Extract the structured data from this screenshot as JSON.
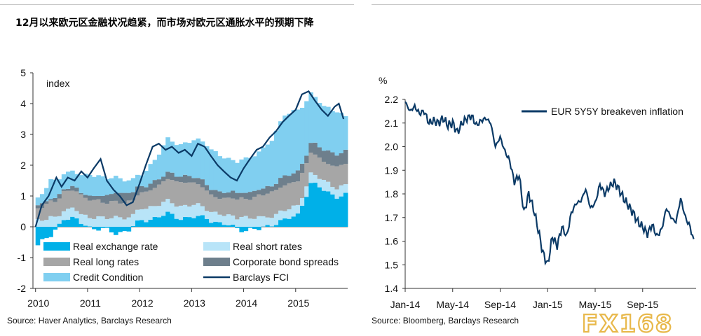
{
  "title": "12月以来欧元区金融状况趋紧，而市场对欧元区通胀水平的预期下降",
  "left_source": "Source: Haver Analytics, Barclays Research",
  "right_source": "Source: Bloomberg, Barclays Research",
  "watermark": {
    "brand": "FX168",
    "colors": [
      "#e8b84a",
      "#c0392b",
      "#e06a3c"
    ]
  },
  "chart_data": [
    {
      "type": "bar",
      "stacked": true,
      "unit_label": "index",
      "ylim": [
        -2,
        5
      ],
      "yticks": [
        "5",
        "4",
        "3",
        "2",
        "1",
        "0",
        "-1",
        "-2"
      ],
      "xticks": [
        {
          "label": "2010",
          "t": 2010.0
        },
        {
          "label": "2011",
          "t": 2011.0
        },
        {
          "label": "2012",
          "t": 2012.0
        },
        {
          "label": "2013",
          "t": 2013.0
        },
        {
          "label": "2014",
          "t": 2014.0
        },
        {
          "label": "2015",
          "t": 2015.0
        }
      ],
      "xrange": [
        2009.95,
        2016.0
      ],
      "series_colors": {
        "real_exchange_rate": "#00b0e8",
        "real_short_rates": "#b8e4f8",
        "real_long_rates": "#a6a6a6",
        "corporate_bond_spreads": "#6e7f8c",
        "credit_condition": "#80cff0",
        "barclays_fci": "#0b3a66"
      },
      "legend": [
        {
          "key": "real_exchange_rate",
          "name": "Real exchange rate",
          "marker": "box"
        },
        {
          "key": "real_short_rates",
          "name": "Real short rates",
          "marker": "box"
        },
        {
          "key": "real_long_rates",
          "name": "Real long rates",
          "marker": "box"
        },
        {
          "key": "corporate_bond_spreads",
          "name": "Corporate bond spreads",
          "marker": "box"
        },
        {
          "key": "credit_condition",
          "name": "Credit Condition",
          "marker": "box"
        },
        {
          "key": "barclays_fci",
          "name": "Barclays FCI",
          "marker": "line"
        }
      ],
      "series_keyframes": {
        "t": [
          2010.0,
          2010.25,
          2010.5,
          2010.75,
          2011.0,
          2011.25,
          2011.5,
          2011.75,
          2012.0,
          2012.25,
          2012.5,
          2012.75,
          2013.0,
          2013.25,
          2013.5,
          2013.75,
          2014.0,
          2014.25,
          2014.5,
          2014.75,
          2015.0,
          2015.25,
          2015.5,
          2015.75,
          2015.92
        ],
        "real_exchange_rate": [
          -0.6,
          -0.3,
          0.3,
          0.2,
          0.0,
          -0.1,
          -0.2,
          -0.1,
          0.2,
          0.3,
          0.4,
          0.3,
          0.3,
          0.3,
          0.1,
          0.0,
          -0.1,
          -0.1,
          0.1,
          0.2,
          0.4,
          1.4,
          1.2,
          1.0,
          1.0
        ],
        "real_short_rates": [
          0.2,
          0.3,
          0.3,
          0.3,
          0.3,
          0.3,
          0.3,
          0.3,
          0.4,
          0.4,
          0.4,
          0.4,
          0.4,
          0.3,
          0.3,
          0.3,
          0.3,
          0.3,
          0.3,
          0.3,
          0.3,
          0.3,
          0.3,
          0.3,
          0.3
        ],
        "real_long_rates": [
          0.4,
          0.5,
          0.6,
          0.6,
          0.6,
          0.5,
          0.5,
          0.5,
          0.5,
          0.6,
          0.7,
          0.8,
          0.7,
          0.6,
          0.5,
          0.6,
          0.6,
          0.7,
          0.8,
          0.8,
          0.8,
          0.7,
          0.6,
          0.7,
          0.7
        ],
        "corporate_bond_spreads": [
          0.1,
          0.1,
          0.1,
          0.1,
          0.1,
          0.2,
          0.3,
          0.3,
          0.2,
          0.2,
          0.2,
          0.2,
          0.2,
          0.2,
          0.2,
          0.2,
          0.2,
          0.2,
          0.2,
          0.3,
          0.3,
          0.3,
          0.4,
          0.4,
          0.4
        ],
        "credit_condition": [
          0.2,
          0.6,
          0.5,
          0.5,
          0.7,
          0.6,
          0.5,
          0.4,
          0.4,
          0.7,
          1.1,
          1.0,
          1.2,
          1.3,
          1.2,
          1.0,
          1.1,
          1.2,
          1.5,
          2.0,
          2.0,
          1.6,
          1.4,
          1.4,
          1.1
        ]
      },
      "fci": {
        "t": [
          2010.0,
          2010.12,
          2010.25,
          2010.4,
          2010.5,
          2010.62,
          2010.75,
          2010.88,
          2011.0,
          2011.12,
          2011.25,
          2011.37,
          2011.5,
          2011.62,
          2011.75,
          2011.87,
          2012.0,
          2012.12,
          2012.25,
          2012.37,
          2012.5,
          2012.62,
          2012.75,
          2012.87,
          2013.0,
          2013.12,
          2013.25,
          2013.37,
          2013.5,
          2013.62,
          2013.75,
          2013.87,
          2014.0,
          2014.12,
          2014.25,
          2014.37,
          2014.5,
          2014.62,
          2014.75,
          2014.87,
          2015.0,
          2015.12,
          2015.25,
          2015.37,
          2015.5,
          2015.62,
          2015.75,
          2015.83,
          2015.92
        ],
        "values": [
          0.0,
          0.7,
          1.0,
          1.6,
          1.3,
          1.6,
          1.5,
          1.8,
          1.6,
          1.9,
          2.2,
          1.5,
          1.2,
          1.0,
          0.7,
          0.8,
          1.4,
          2.0,
          2.6,
          2.7,
          2.5,
          2.6,
          2.4,
          2.5,
          2.3,
          2.7,
          2.6,
          2.3,
          2.0,
          1.8,
          1.6,
          1.5,
          1.9,
          2.2,
          2.5,
          2.6,
          2.9,
          3.1,
          3.4,
          3.6,
          3.8,
          4.3,
          4.4,
          4.1,
          3.8,
          3.6,
          3.9,
          4.0,
          3.5
        ]
      }
    },
    {
      "type": "line",
      "unit_label": "%",
      "ylim": [
        1.4,
        2.2
      ],
      "yticks": [
        "2.2",
        "2.1",
        "2.0",
        "1.9",
        "1.8",
        "1.7",
        "1.6",
        "1.5",
        "1.4"
      ],
      "xticks": [
        "Jan-14",
        "May-14",
        "Sep-14",
        "Jan-15",
        "May-15",
        "Sep-15"
      ],
      "xtick_months": [
        0,
        4,
        8,
        12,
        16,
        20
      ],
      "xrange_months": [
        0,
        24.5
      ],
      "color": "#0b3a66",
      "series": [
        {
          "name": "EUR 5Y5Y breakeven inflation",
          "t_months": [
            0,
            0.4,
            0.8,
            1.2,
            1.6,
            2.0,
            2.4,
            2.8,
            3.2,
            3.6,
            4.0,
            4.4,
            4.8,
            5.2,
            5.6,
            6.0,
            6.4,
            6.8,
            7.2,
            7.6,
            8.0,
            8.4,
            8.8,
            9.2,
            9.6,
            10.0,
            10.4,
            10.8,
            11.2,
            11.6,
            12.0,
            12.4,
            12.8,
            13.2,
            13.6,
            14.0,
            14.4,
            14.8,
            15.2,
            15.6,
            16.0,
            16.4,
            16.8,
            17.2,
            17.6,
            18.0,
            18.4,
            18.8,
            19.2,
            19.6,
            20.0,
            20.4,
            20.8,
            21.2,
            21.6,
            22.0,
            22.4,
            22.8,
            23.2,
            23.6,
            24.0,
            24.3
          ],
          "values": [
            2.19,
            2.15,
            2.17,
            2.14,
            2.15,
            2.1,
            2.11,
            2.1,
            2.12,
            2.09,
            2.1,
            2.06,
            2.1,
            2.12,
            2.13,
            2.09,
            2.11,
            2.12,
            2.1,
            2.0,
            2.04,
            1.98,
            1.94,
            1.85,
            1.88,
            1.72,
            1.8,
            1.74,
            1.65,
            1.55,
            1.5,
            1.62,
            1.58,
            1.66,
            1.62,
            1.72,
            1.76,
            1.77,
            1.82,
            1.74,
            1.76,
            1.84,
            1.8,
            1.83,
            1.85,
            1.82,
            1.78,
            1.75,
            1.72,
            1.68,
            1.66,
            1.63,
            1.67,
            1.62,
            1.65,
            1.74,
            1.7,
            1.68,
            1.78,
            1.7,
            1.66,
            1.6
          ]
        }
      ]
    }
  ]
}
